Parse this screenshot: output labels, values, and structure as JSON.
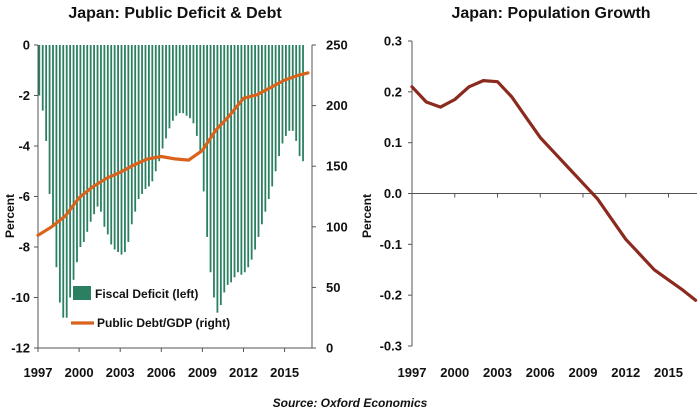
{
  "source": "Source: Oxford Economics",
  "colors": {
    "deficit": "#2a8060",
    "debt": "#d9621c",
    "population": "#8b2a1e",
    "axis": "#555555",
    "text": "#111111"
  },
  "chart_data": [
    {
      "type": "bar",
      "title": "Japan: Public Deficit & Debt",
      "ylabel": "Percent",
      "ylim_left": [
        -12,
        0
      ],
      "yticks_left": [
        "0",
        "-2",
        "-4",
        "-6",
        "-8",
        "-10",
        "-12"
      ],
      "ylim_right": [
        0,
        250
      ],
      "yticks_right": [
        "250",
        "200",
        "150",
        "100",
        "50",
        "0"
      ],
      "xlim": [
        1997,
        2017
      ],
      "xticks": [
        "1997",
        "2000",
        "2003",
        "2006",
        "2009",
        "2012",
        "2015"
      ],
      "legend": [
        "Fiscal Deficit (left)",
        "Public Debt/GDP (right)"
      ],
      "grid": false,
      "series": [
        {
          "name": "Fiscal Deficit (left)",
          "kind": "bar",
          "axis": "left",
          "points": [
            [
              1997.0,
              -2.0
            ],
            [
              1997.25,
              -2.6
            ],
            [
              1997.5,
              -3.8
            ],
            [
              1997.75,
              -5.9
            ],
            [
              1998.0,
              -7.2
            ],
            [
              1998.25,
              -8.8
            ],
            [
              1998.5,
              -10.2
            ],
            [
              1998.75,
              -10.8
            ],
            [
              1999.0,
              -10.8
            ],
            [
              1999.25,
              -10.0
            ],
            [
              1999.5,
              -9.3
            ],
            [
              1999.75,
              -8.6
            ],
            [
              2000.0,
              -8.0
            ],
            [
              2000.25,
              -7.8
            ],
            [
              2000.5,
              -7.4
            ],
            [
              2000.75,
              -7.0
            ],
            [
              2001.0,
              -6.7
            ],
            [
              2001.25,
              -6.4
            ],
            [
              2001.5,
              -6.6
            ],
            [
              2001.75,
              -7.2
            ],
            [
              2002.0,
              -7.5
            ],
            [
              2002.25,
              -7.9
            ],
            [
              2002.5,
              -8.1
            ],
            [
              2002.75,
              -8.2
            ],
            [
              2003.0,
              -8.3
            ],
            [
              2003.25,
              -8.2
            ],
            [
              2003.5,
              -7.8
            ],
            [
              2003.75,
              -7.1
            ],
            [
              2004.0,
              -6.6
            ],
            [
              2004.25,
              -6.1
            ],
            [
              2004.5,
              -5.9
            ],
            [
              2004.75,
              -5.7
            ],
            [
              2005.0,
              -5.6
            ],
            [
              2005.25,
              -5.4
            ],
            [
              2005.5,
              -5.0
            ],
            [
              2005.75,
              -4.6
            ],
            [
              2006.0,
              -4.1
            ],
            [
              2006.25,
              -3.7
            ],
            [
              2006.5,
              -3.3
            ],
            [
              2006.75,
              -3.0
            ],
            [
              2007.0,
              -2.8
            ],
            [
              2007.25,
              -2.7
            ],
            [
              2007.5,
              -2.7
            ],
            [
              2007.75,
              -2.8
            ],
            [
              2008.0,
              -2.9
            ],
            [
              2008.25,
              -3.1
            ],
            [
              2008.5,
              -3.6
            ],
            [
              2008.75,
              -4.3
            ],
            [
              2009.0,
              -5.8
            ],
            [
              2009.25,
              -7.6
            ],
            [
              2009.5,
              -9.0
            ],
            [
              2009.75,
              -10.0
            ],
            [
              2010.0,
              -10.6
            ],
            [
              2010.25,
              -10.3
            ],
            [
              2010.5,
              -9.8
            ],
            [
              2010.75,
              -9.5
            ],
            [
              2011.0,
              -9.4
            ],
            [
              2011.25,
              -9.2
            ],
            [
              2011.5,
              -9.0
            ],
            [
              2011.75,
              -9.1
            ],
            [
              2012.0,
              -9.0
            ],
            [
              2012.25,
              -8.8
            ],
            [
              2012.5,
              -8.5
            ],
            [
              2012.75,
              -8.1
            ],
            [
              2013.0,
              -7.6
            ],
            [
              2013.25,
              -7.1
            ],
            [
              2013.5,
              -6.6
            ],
            [
              2013.75,
              -6.1
            ],
            [
              2014.0,
              -5.6
            ],
            [
              2014.25,
              -5.0
            ],
            [
              2014.5,
              -4.4
            ],
            [
              2014.75,
              -3.9
            ],
            [
              2015.0,
              -3.6
            ],
            [
              2015.25,
              -3.4
            ],
            [
              2015.5,
              -3.4
            ],
            [
              2015.75,
              -3.8
            ],
            [
              2016.0,
              -4.4
            ],
            [
              2016.25,
              -4.6
            ]
          ]
        },
        {
          "name": "Public Debt/GDP (right)",
          "kind": "line",
          "axis": "right",
          "points": [
            [
              1997.0,
              93
            ],
            [
              1998.0,
              100
            ],
            [
              1999.0,
              109
            ],
            [
              2000.0,
              124
            ],
            [
              2001.0,
              133
            ],
            [
              2002.0,
              140
            ],
            [
              2003.0,
              145
            ],
            [
              2004.0,
              151
            ],
            [
              2005.0,
              156
            ],
            [
              2006.0,
              158
            ],
            [
              2007.0,
              156
            ],
            [
              2008.0,
              155
            ],
            [
              2009.0,
              163
            ],
            [
              2010.0,
              180
            ],
            [
              2011.0,
              192
            ],
            [
              2012.0,
              206
            ],
            [
              2013.0,
              209
            ],
            [
              2014.0,
              215
            ],
            [
              2015.0,
              221
            ],
            [
              2016.0,
              225
            ],
            [
              2016.7,
              227
            ]
          ]
        }
      ]
    },
    {
      "type": "line",
      "title": "Japan: Population Growth",
      "ylabel": "Percent",
      "ylim": [
        -0.3,
        0.3
      ],
      "yticks": [
        "0.3",
        "0.2",
        "0.1",
        "0.0",
        "-0.1",
        "-0.2",
        "-0.3"
      ],
      "xlim": [
        1997,
        2017
      ],
      "xticks": [
        "1997",
        "2000",
        "2003",
        "2006",
        "2009",
        "2012",
        "2015"
      ],
      "grid": false,
      "series": [
        {
          "name": "",
          "points": [
            [
              1997.0,
              0.21
            ],
            [
              1998.0,
              0.18
            ],
            [
              1999.0,
              0.17
            ],
            [
              2000.0,
              0.185
            ],
            [
              2001.0,
              0.21
            ],
            [
              2002.0,
              0.222
            ],
            [
              2003.0,
              0.22
            ],
            [
              2004.0,
              0.19
            ],
            [
              2005.0,
              0.15
            ],
            [
              2006.0,
              0.11
            ],
            [
              2007.0,
              0.08
            ],
            [
              2008.0,
              0.05
            ],
            [
              2009.0,
              0.02
            ],
            [
              2010.0,
              -0.01
            ],
            [
              2011.0,
              -0.05
            ],
            [
              2012.0,
              -0.09
            ],
            [
              2013.0,
              -0.12
            ],
            [
              2014.0,
              -0.15
            ],
            [
              2015.0,
              -0.17
            ],
            [
              2016.0,
              -0.19
            ],
            [
              2016.9,
              -0.21
            ]
          ]
        }
      ]
    }
  ]
}
